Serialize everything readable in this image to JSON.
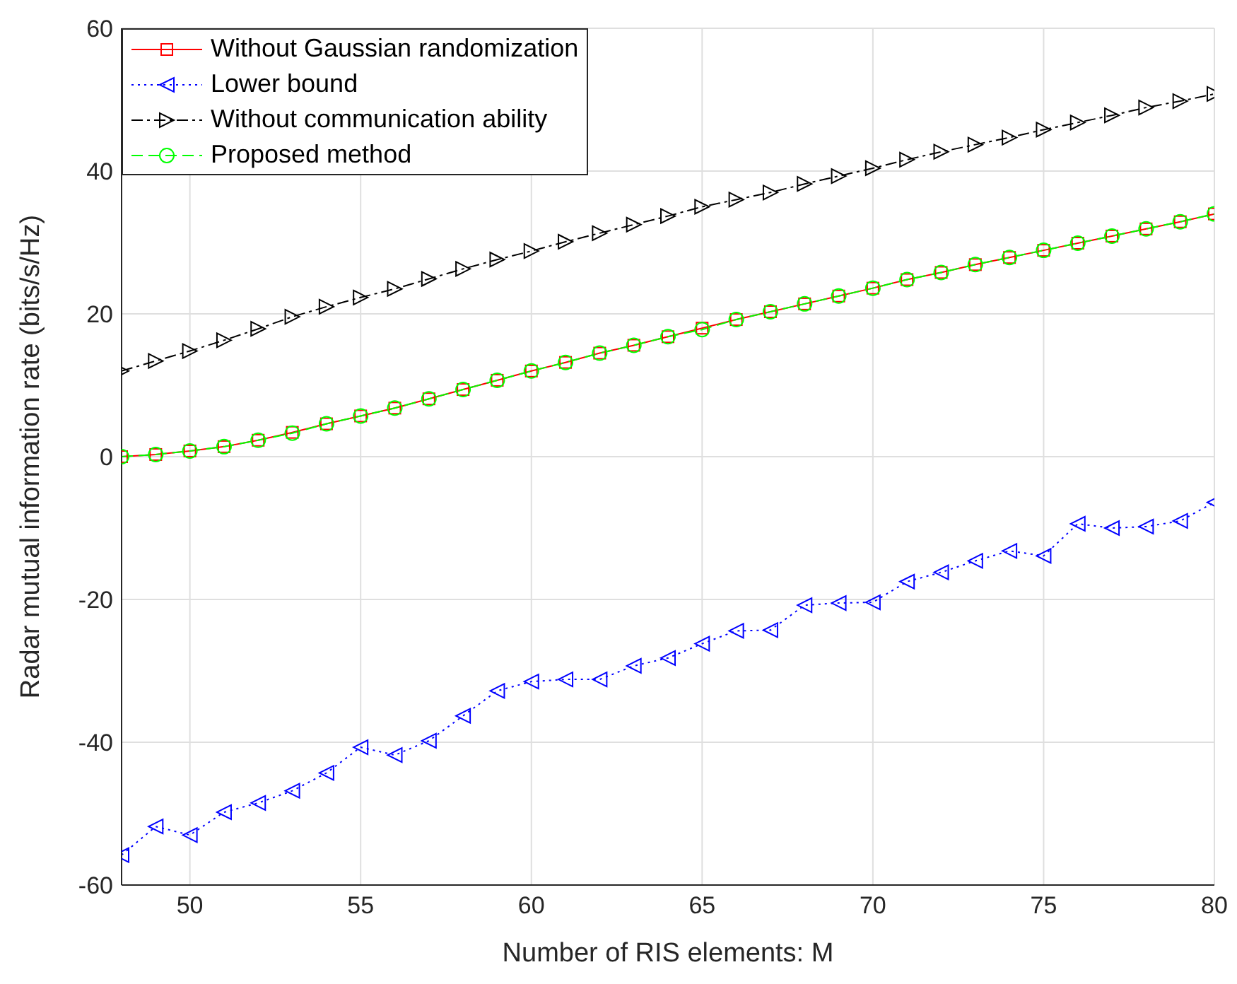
{
  "chart_data": {
    "type": "line",
    "xlabel": "Number of RIS elements: M",
    "ylabel": "Radar mutual information rate (bits/s/Hz)",
    "x": [
      48,
      49,
      50,
      51,
      52,
      53,
      54,
      55,
      56,
      57,
      58,
      59,
      60,
      61,
      62,
      63,
      64,
      65,
      66,
      67,
      68,
      69,
      70,
      71,
      72,
      73,
      74,
      75,
      76,
      77,
      78,
      79,
      80
    ],
    "series": [
      {
        "name": "Without Gaussian randomization",
        "color": "#ff0000",
        "marker": "square",
        "line_style": "solid",
        "values": [
          0,
          0.3,
          0.8,
          1.4,
          2.3,
          3.4,
          4.6,
          5.7,
          6.8,
          8.1,
          9.4,
          10.7,
          12,
          13.2,
          14.5,
          15.6,
          16.8,
          18,
          19.2,
          20.3,
          21.4,
          22.5,
          23.6,
          24.8,
          25.8,
          26.9,
          27.9,
          28.9,
          29.9,
          30.9,
          31.9,
          32.9,
          34
        ]
      },
      {
        "name": "Lower bound",
        "color": "#0000ff",
        "marker": "triangle-left",
        "line_style": "dotted",
        "values": [
          -55.8,
          -51.8,
          -53,
          -49.8,
          -48.5,
          -46.8,
          -44.3,
          -40.7,
          -41.8,
          -39.8,
          -36.3,
          -32.8,
          -31.5,
          -31.2,
          -31.2,
          -29.3,
          -28.2,
          -26.2,
          -24.4,
          -24.3,
          -20.8,
          -20.5,
          -20.4,
          -17.5,
          -16.2,
          -14.6,
          -13.2,
          -13.9,
          -9.4,
          -10,
          -9.8,
          -9,
          -6.4
        ]
      },
      {
        "name": "Without communication ability",
        "color": "#000000",
        "marker": "triangle-right",
        "line_style": "dashdot",
        "values": [
          12,
          13.4,
          14.8,
          16.3,
          17.9,
          19.6,
          21,
          22.3,
          23.5,
          24.9,
          26.3,
          27.6,
          28.8,
          30.1,
          31.3,
          32.5,
          33.7,
          35,
          36,
          37,
          38.2,
          39.3,
          40.4,
          41.6,
          42.7,
          43.7,
          44.7,
          45.8,
          46.8,
          47.8,
          48.9,
          49.8,
          50.8
        ]
      },
      {
        "name": "Proposed method",
        "color": "#00ff00",
        "marker": "circle",
        "line_style": "dashed",
        "values": [
          0,
          0.3,
          0.8,
          1.4,
          2.3,
          3.3,
          4.6,
          5.7,
          6.8,
          8.1,
          9.4,
          10.7,
          12,
          13.2,
          14.5,
          15.6,
          16.8,
          17.8,
          19.2,
          20.3,
          21.4,
          22.5,
          23.6,
          24.8,
          25.8,
          26.9,
          27.9,
          28.9,
          29.9,
          30.9,
          31.9,
          32.9,
          34
        ]
      }
    ],
    "xlim": [
      48,
      80
    ],
    "xticks": [
      50,
      55,
      60,
      65,
      70,
      75,
      80
    ],
    "ylim": [
      -60,
      60
    ],
    "yticks": [
      -60,
      -40,
      -20,
      0,
      20,
      40,
      60
    ],
    "grid": true,
    "legend": "top left"
  }
}
